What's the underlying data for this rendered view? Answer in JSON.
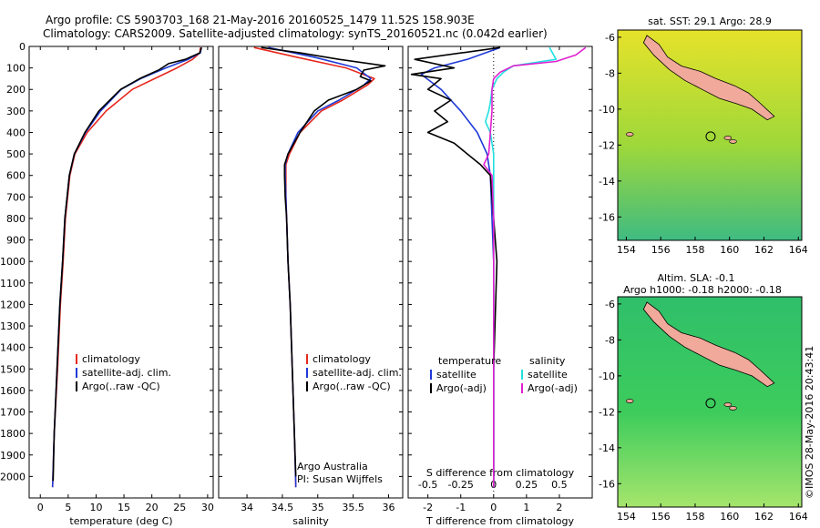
{
  "header": {
    "line1": "Argo profile: CS 5903703_168 21-May-2016 20160525_1479 11.52S 158.903E",
    "line2": "Climatology: CARS2009. Satellite-adjusted climatology: synTS_20160521.nc (0.042d earlier)"
  },
  "depth_axis": {
    "ticks": [
      0,
      100,
      200,
      300,
      400,
      500,
      600,
      700,
      800,
      900,
      1000,
      1100,
      1200,
      1300,
      1400,
      1500,
      1600,
      1700,
      1800,
      1900,
      2000
    ],
    "range": [
      0,
      2100
    ]
  },
  "chart_data": [
    {
      "type": "line",
      "title": "temperature profile",
      "xlabel": "temperature (deg C)",
      "xlim": [
        -2,
        31
      ],
      "xticks": [
        0,
        5,
        10,
        15,
        20,
        25,
        30
      ],
      "ylim": [
        2100,
        0
      ],
      "legend": [
        "climatology",
        "satellite-adj. clim.",
        "Argo(..raw -QC)"
      ],
      "series": [
        {
          "name": "climatology",
          "color": "#e8281e",
          "depth": [
            5,
            30,
            60,
            100,
            150,
            200,
            300,
            400,
            500,
            600,
            800,
            1000,
            1200,
            1500,
            1800,
            2050
          ],
          "values": [
            28.7,
            28.6,
            27.3,
            24.5,
            20.5,
            16.5,
            11.8,
            8.4,
            6.2,
            5.3,
            4.5,
            4.1,
            3.6,
            3.1,
            2.5,
            2.2
          ]
        },
        {
          "name": "satellite-adj. clim.",
          "color": "#1f3ad6",
          "depth": [
            5,
            30,
            60,
            100,
            150,
            200,
            300,
            400,
            500,
            600,
            800,
            1000,
            1200,
            1500,
            1800,
            2050
          ],
          "values": [
            28.9,
            28.7,
            26.5,
            22.5,
            18.0,
            14.5,
            10.8,
            8.1,
            6.1,
            5.2,
            4.4,
            4.0,
            3.5,
            3.0,
            2.5,
            2.2
          ]
        },
        {
          "name": "Argo(..raw -QC)",
          "color": "#000000",
          "depth": [
            5,
            30,
            60,
            80,
            110,
            150,
            200,
            300,
            400,
            500,
            600,
            800,
            1000,
            1200,
            1500,
            1800,
            2020
          ],
          "values": [
            28.9,
            28.6,
            26.0,
            23.0,
            21.2,
            17.8,
            14.4,
            10.5,
            8.0,
            6.1,
            5.2,
            4.4,
            4.0,
            3.5,
            3.0,
            2.5,
            2.3
          ]
        }
      ],
      "annotations": []
    },
    {
      "type": "line",
      "title": "salinity profile",
      "xlabel": "salinity",
      "xlim": [
        33.6,
        36.2
      ],
      "xticks": [
        34,
        34.5,
        35,
        35.5,
        36
      ],
      "xticklabels": [
        "34",
        "34.5",
        "35",
        "35.5",
        "36"
      ],
      "ylim": [
        2100,
        0
      ],
      "legend": [
        "climatology",
        "satellite-adj. clim.",
        "Argo(..raw -QC)"
      ],
      "series": [
        {
          "name": "climatology",
          "color": "#e8281e",
          "depth": [
            5,
            50,
            100,
            150,
            180,
            200,
            250,
            300,
            400,
            500,
            550,
            600,
            700,
            800,
            1000,
            1200,
            1500,
            1800,
            2050
          ],
          "values": [
            34.1,
            34.7,
            35.4,
            35.8,
            35.7,
            35.6,
            35.35,
            35.05,
            34.75,
            34.6,
            34.55,
            34.55,
            34.55,
            34.56,
            34.58,
            34.61,
            34.64,
            34.67,
            34.69
          ]
        },
        {
          "name": "satellite-adj. clim.",
          "color": "#1f3ad6",
          "depth": [
            5,
            50,
            100,
            150,
            180,
            200,
            250,
            300,
            400,
            500,
            550,
            600,
            700,
            800,
            1000,
            1200,
            1500,
            1800,
            2050
          ],
          "values": [
            34.3,
            34.95,
            35.55,
            35.75,
            35.65,
            35.55,
            35.3,
            35.0,
            34.72,
            34.58,
            34.54,
            34.54,
            34.55,
            34.56,
            34.58,
            34.61,
            34.64,
            34.67,
            34.69
          ]
        },
        {
          "name": "Argo(..raw -QC)",
          "color": "#000000",
          "depth": [
            5,
            30,
            60,
            90,
            110,
            140,
            160,
            200,
            250,
            300,
            400,
            500,
            550,
            600,
            700,
            800,
            1000,
            1200,
            1500,
            1800,
            2000
          ],
          "values": [
            34.2,
            34.75,
            35.3,
            35.95,
            35.65,
            35.6,
            35.75,
            35.55,
            35.15,
            34.95,
            34.75,
            34.58,
            34.53,
            34.53,
            34.54,
            34.56,
            34.58,
            34.61,
            34.64,
            34.67,
            34.69
          ]
        }
      ],
      "annotations": [
        "Argo Australia",
        "PI: Susan Wijffels"
      ]
    },
    {
      "type": "line",
      "title": "difference from climatology",
      "xlabel": "T difference from climatology",
      "xlabel_top": "S difference from climatology",
      "xlim": [
        -2.6,
        3.0
      ],
      "xticks_bottom": [
        -2,
        -1,
        0,
        1,
        2
      ],
      "xticks_top": [
        -0.5,
        -0.25,
        0,
        0.25,
        0.5
      ],
      "xticklabels_top": [
        "-0.5",
        "-0.25",
        "0",
        "0.25",
        "0.5"
      ],
      "ylim": [
        2100,
        0
      ],
      "legend": [
        "temperature",
        "satellite",
        "Argo(-adj)",
        "salinity",
        "satellite",
        "Argo(-adj)"
      ],
      "series": [
        {
          "name": "temperature satellite",
          "color": "#1f3ad6",
          "depth": [
            5,
            60,
            100,
            130,
            200,
            300,
            400,
            500,
            600,
            1000,
            1500,
            2050
          ],
          "values": [
            0.2,
            -0.8,
            -1.8,
            -2.2,
            -1.6,
            -1.0,
            -0.5,
            -0.2,
            -0.1,
            0,
            0,
            0
          ]
        },
        {
          "name": "temperature Argo(-adj)",
          "color": "#000000",
          "depth": [
            5,
            60,
            100,
            130,
            150,
            200,
            250,
            300,
            350,
            400,
            450,
            500,
            550,
            600,
            800,
            1000,
            1500,
            2050
          ],
          "values": [
            0.2,
            -2.4,
            -1.2,
            -2.5,
            -1.6,
            -2.0,
            -1.3,
            -1.8,
            -1.4,
            -2.0,
            -1.2,
            -0.8,
            -0.4,
            -0.1,
            0,
            0.1,
            0,
            0
          ]
        },
        {
          "name": "salinity satellite",
          "color": "#22e0e0",
          "depth": [
            5,
            60,
            90,
            120,
            150,
            200,
            260,
            300,
            350,
            400,
            500,
            600,
            800,
            1000,
            1500,
            2050
          ],
          "values": [
            1.7,
            1.9,
            0.6,
            0.3,
            0.1,
            -0.05,
            -0.1,
            -0.15,
            -0.25,
            -0.1,
            0,
            0,
            0,
            0,
            0,
            0
          ]
        },
        {
          "name": "salinity Argo(-adj)",
          "color": "#e020d0",
          "depth": [
            5,
            40,
            70,
            90,
            120,
            150,
            200,
            300,
            400,
            500,
            550,
            600,
            800,
            1000,
            1500,
            2050
          ],
          "values": [
            2.8,
            2.5,
            1.9,
            0.6,
            0.2,
            0.0,
            -0.05,
            -0.05,
            -0.1,
            -0.15,
            -0.3,
            -0.05,
            0,
            0,
            0,
            0
          ]
        }
      ],
      "annotations": []
    }
  ],
  "maps": [
    {
      "title": "sat. SST: 29.1  Argo: 28.9",
      "xticks": [
        154,
        156,
        158,
        160,
        162,
        164
      ],
      "yticks": [
        -6,
        -8,
        -10,
        -12,
        -14,
        -16
      ],
      "float_lon": 158.9,
      "float_lat": -11.52,
      "colors": {
        "field_high": "#e6e22a",
        "field_mid": "#9ed83a",
        "field_low": "#3fbb82",
        "land": "#f0a99a"
      }
    },
    {
      "title_line1": "Altim. SLA: -0.1",
      "title_line2": "Argo h1000: -0.18 h2000: -0.18",
      "xticks": [
        154,
        156,
        158,
        160,
        162,
        164
      ],
      "yticks": [
        -6,
        -8,
        -10,
        -12,
        -14,
        -16
      ],
      "float_lon": 158.9,
      "float_lat": -11.52,
      "colors": {
        "field_high": "#2fbf6a",
        "field_mid": "#3dcc5c",
        "field_low": "#a5e56c",
        "land": "#f0a99a"
      }
    }
  ],
  "credit": "©IMOS 28-May-2016 20:43:41"
}
